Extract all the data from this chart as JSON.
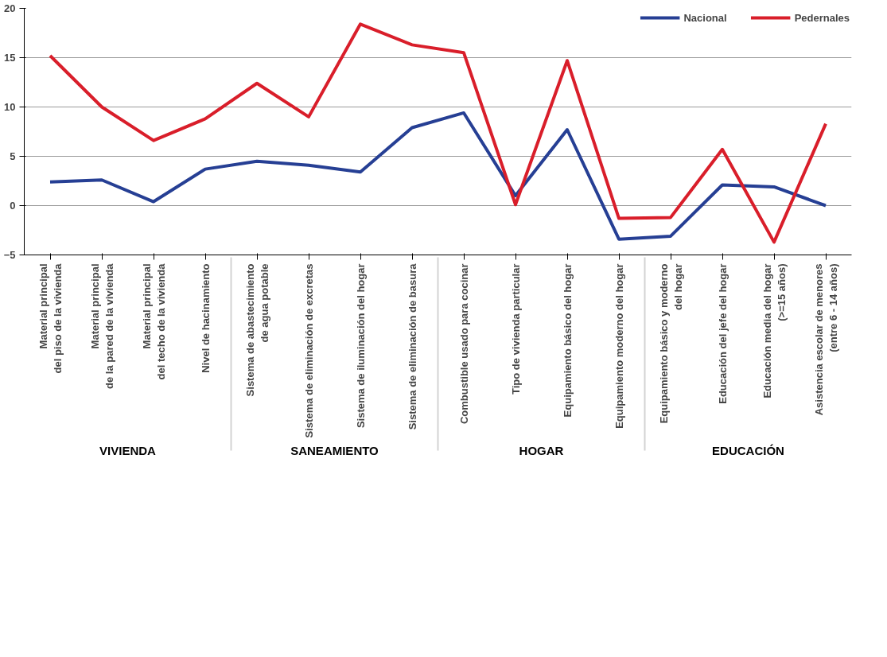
{
  "chart_data": {
    "type": "line",
    "categories": [
      "Material principal\ndel piso de la vivienda",
      "Material principal\nde la pared de la vivienda",
      "Material principal\ndel techo de la vivienda",
      "Nivel de hacinamiento",
      "Sistema de abastecimiento\nde agua potable",
      "Sistema de eliminación de excretas",
      "Sistema de iluminación del hogar",
      "Sistema de eliminación de basura",
      "Combustible usado para cocinar",
      "Tipo de vivienda particular",
      "Equipamiento básico del hogar",
      "Equipamiento moderno del hogar",
      "Equipamiento básico y moderno\ndel hogar",
      "Educación del jefe del hogar",
      "Educación media del hogar\n(>=15 años)",
      "Asistencia escolar de menores\n(entre 6 - 14 años)"
    ],
    "annotations": [
      "VIVIENDA",
      "SANEAMIENTO",
      "HOGAR",
      "EDUCACIÓN"
    ],
    "series": [
      {
        "name": "Nacional",
        "color": "#263f94",
        "values": [
          2.4,
          2.6,
          0.4,
          3.7,
          4.5,
          4.1,
          3.4,
          7.9,
          9.4,
          1.0,
          7.7,
          -3.4,
          -3.1,
          2.1,
          1.9,
          0
        ]
      },
      {
        "name": "Pedernales",
        "color": "#d91e2a",
        "values": [
          15.2,
          10.0,
          6.6,
          8.8,
          12.4,
          9.0,
          18.4,
          16.3,
          15.5,
          0.1,
          14.7,
          -1.3,
          -1.2,
          5.7,
          -3.7,
          8.3
        ]
      }
    ],
    "ylim": [
      -5,
      20
    ],
    "yticks": [
      -5,
      0,
      5,
      10,
      15,
      20
    ],
    "grid": "y",
    "legend": "top right",
    "line_style": "solid"
  }
}
